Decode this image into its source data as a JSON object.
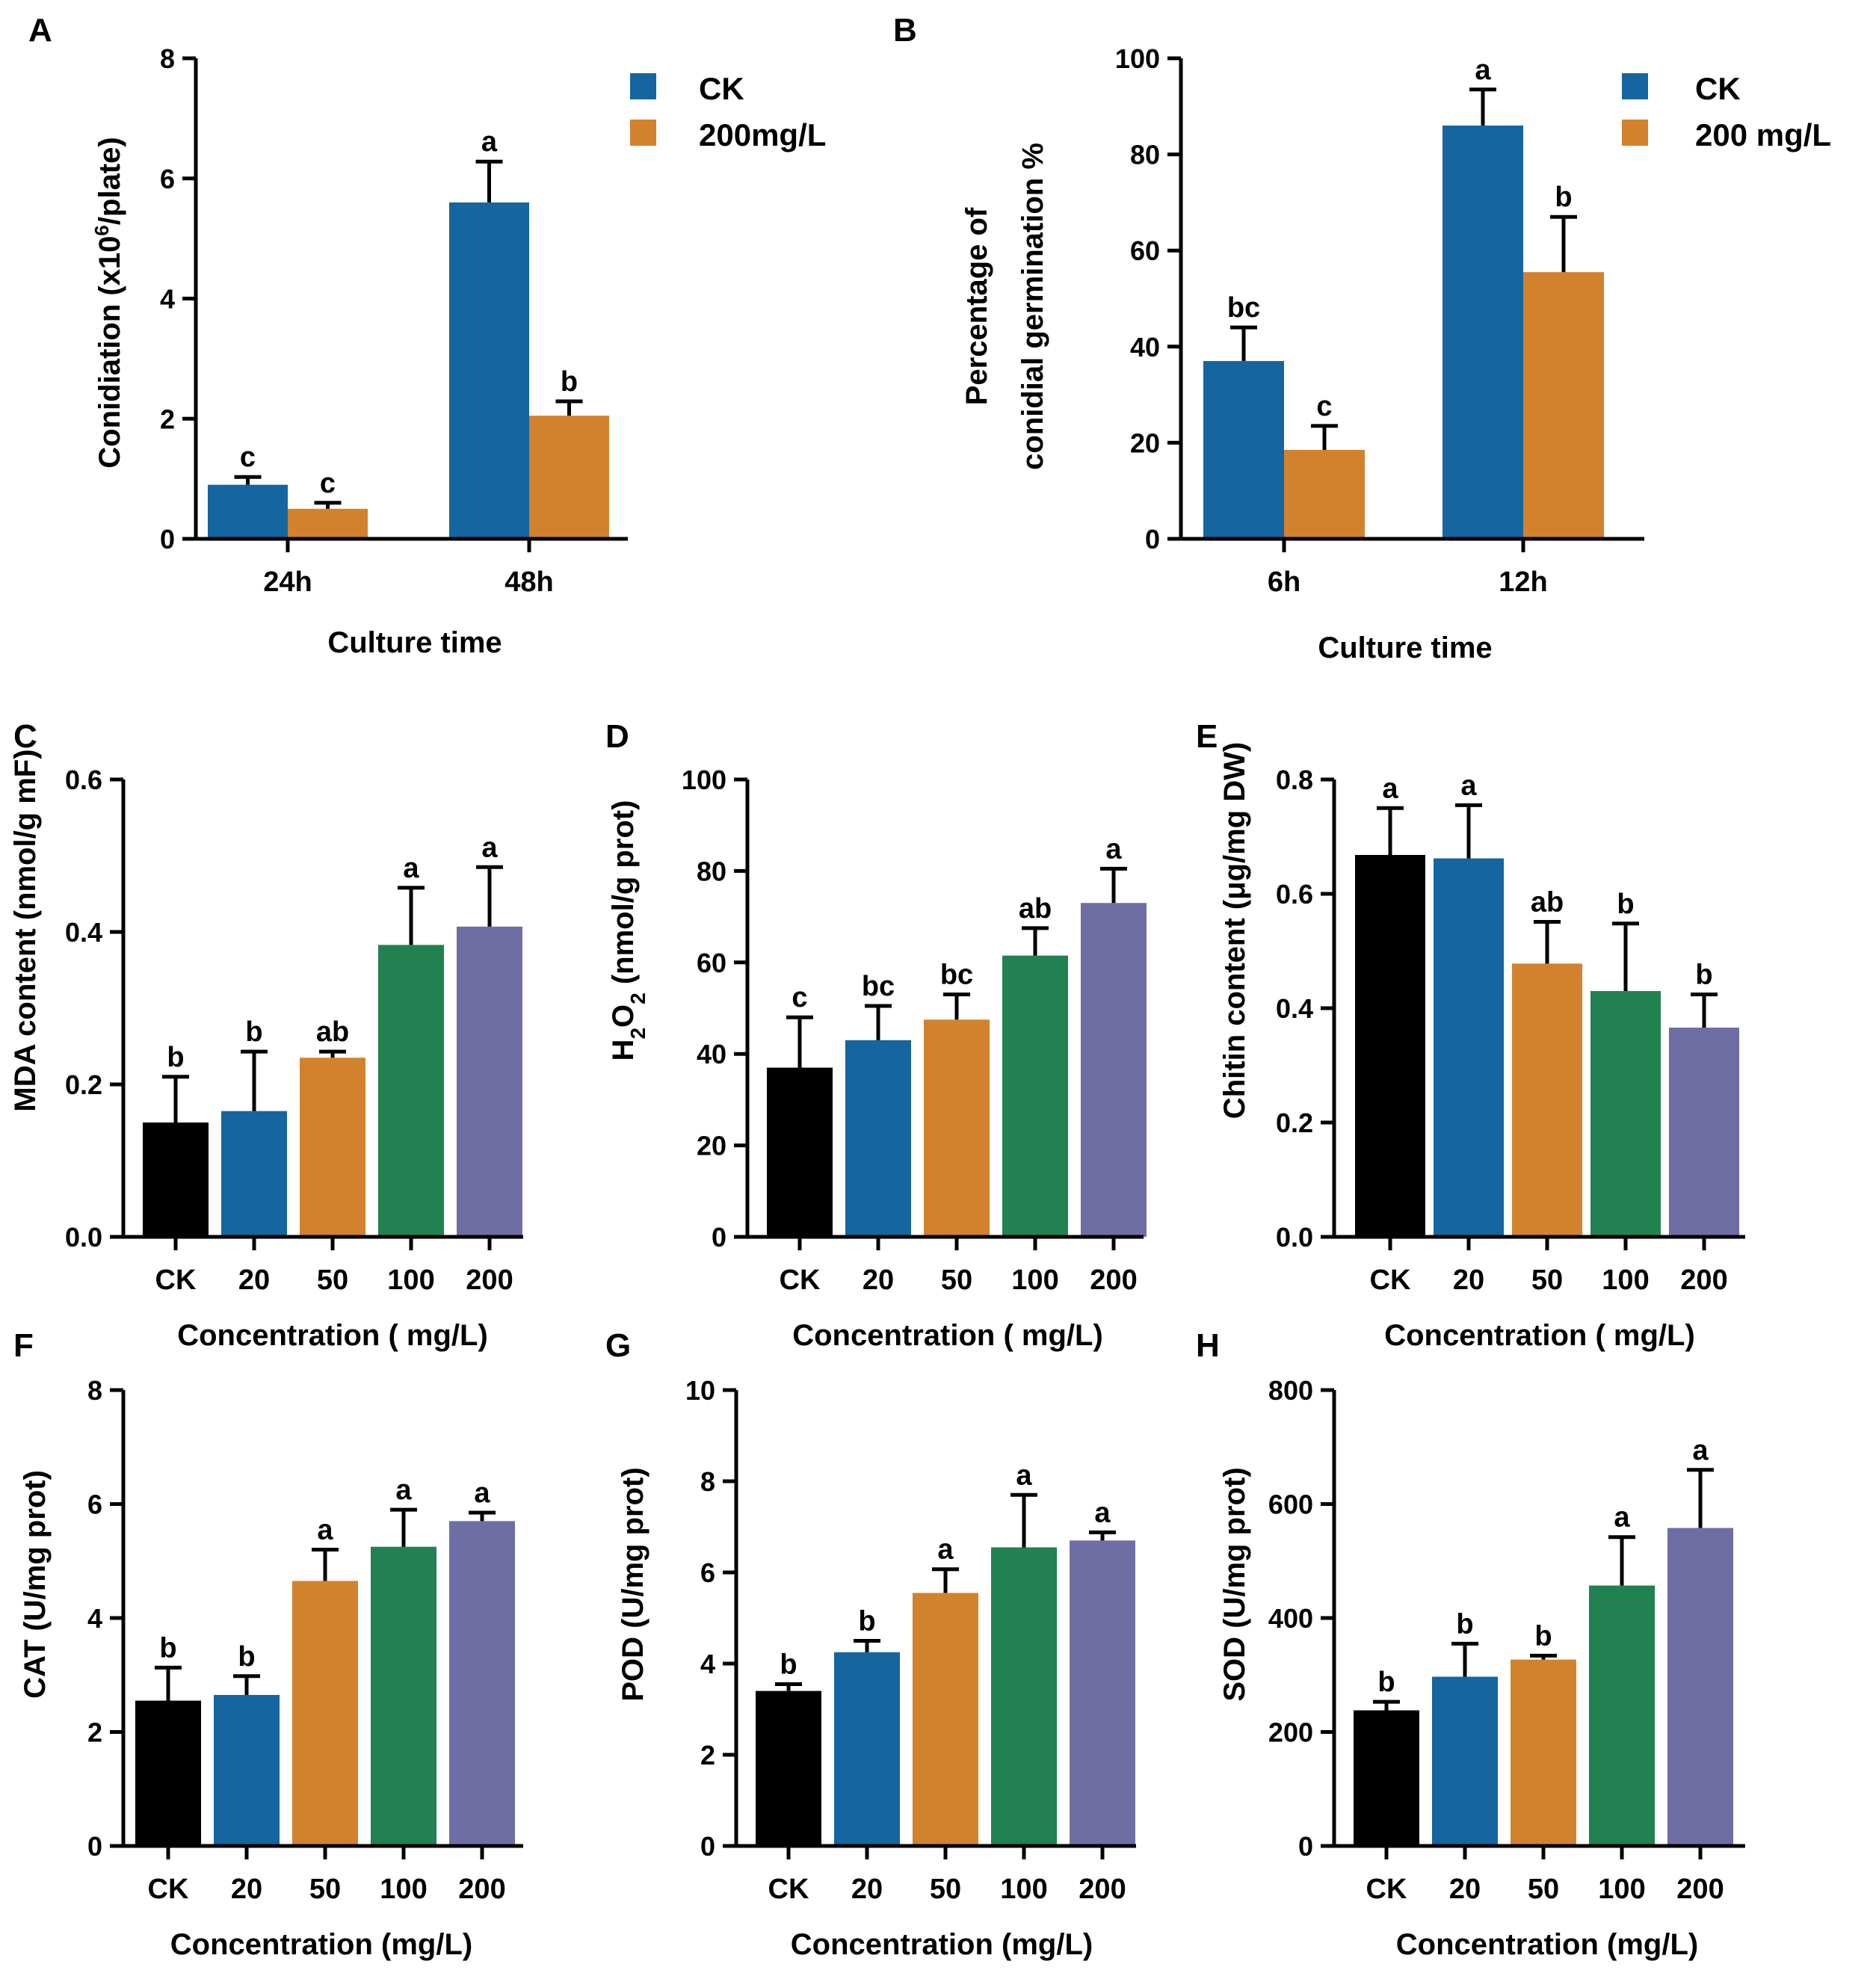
{
  "colors": {
    "black": "#000000",
    "blue": "#1565a0",
    "orange": "#d2822d",
    "green": "#218151",
    "purple": "#6f6ea4"
  },
  "chart_data": [
    {
      "id": "A",
      "type": "bar",
      "panel_label": "A",
      "categories": [
        "24h",
        "48h"
      ],
      "series": [
        {
          "name": "CK",
          "color": "blue",
          "values": [
            0.9,
            5.6
          ],
          "errors": [
            0.13,
            0.68
          ],
          "letters": [
            "c",
            "a"
          ]
        },
        {
          "name": "200mg/L",
          "color": "orange",
          "values": [
            0.5,
            2.05
          ],
          "errors": [
            0.1,
            0.24
          ],
          "letters": [
            "c",
            "b"
          ]
        }
      ],
      "ylabel": "Conidiation (x10^6/plate)",
      "ylabel_main": "Conidiation (x10",
      "ylabel_sup": "6",
      "ylabel_tail": "/plate)",
      "xlabel": "Culture time",
      "ylim": [
        0,
        8
      ],
      "yticks": [
        "0",
        "2",
        "4",
        "6",
        "8"
      ],
      "legend": [
        "CK",
        "200mg/L"
      ]
    },
    {
      "id": "B",
      "type": "bar",
      "panel_label": "B",
      "categories": [
        "6h",
        "12h"
      ],
      "series": [
        {
          "name": "CK",
          "color": "blue",
          "values": [
            37,
            86
          ],
          "errors": [
            7,
            7.5
          ],
          "letters": [
            "bc",
            "a"
          ]
        },
        {
          "name": "200 mg/L",
          "color": "orange",
          "values": [
            18.5,
            55.5
          ],
          "errors": [
            5,
            11.5
          ],
          "letters": [
            "c",
            "b"
          ]
        }
      ],
      "ylabel_lines": [
        "Percentage of",
        "conidial germination %"
      ],
      "xlabel": "Culture time",
      "ylim": [
        0,
        100
      ],
      "yticks": [
        "0",
        "20",
        "40",
        "60",
        "80",
        "100"
      ],
      "legend": [
        "CK",
        "200 mg/L"
      ]
    },
    {
      "id": "C",
      "type": "bar",
      "panel_label": "C",
      "categories": [
        "CK",
        "20",
        "50",
        "100",
        "200"
      ],
      "values": [
        0.15,
        0.165,
        0.235,
        0.383,
        0.407
      ],
      "errors": [
        0.06,
        0.078,
        0.008,
        0.075,
        0.078
      ],
      "letters": [
        "b",
        "b",
        "ab",
        "a",
        "a"
      ],
      "ylabel": "MDA content (nmol/g mF)",
      "xlabel": "Concentration ( mg/L)",
      "ylim": [
        0,
        0.6
      ],
      "yticks": [
        "0.0",
        "0.2",
        "0.4",
        "0.6"
      ]
    },
    {
      "id": "D",
      "type": "bar",
      "panel_label": "D",
      "categories": [
        "CK",
        "20",
        "50",
        "100",
        "200"
      ],
      "values": [
        37,
        43,
        47.5,
        61.5,
        73
      ],
      "errors": [
        11,
        7.5,
        5.5,
        6,
        7.5
      ],
      "letters": [
        "c",
        "bc",
        "bc",
        "ab",
        "a"
      ],
      "ylabel": "H2O2 (nmol/g prot)",
      "ylabel_a": "H",
      "ylabel_sub1": "2",
      "ylabel_b": "O",
      "ylabel_sub2": "2",
      "ylabel_c": " (nmol/g prot)",
      "xlabel": "Concentration ( mg/L)",
      "ylim": [
        0,
        100
      ],
      "yticks": [
        "0",
        "20",
        "40",
        "60",
        "80",
        "100"
      ]
    },
    {
      "id": "E",
      "type": "bar",
      "panel_label": "E",
      "categories": [
        "CK",
        "20",
        "50",
        "100",
        "200"
      ],
      "values": [
        0.668,
        0.662,
        0.478,
        0.43,
        0.366
      ],
      "errors": [
        0.082,
        0.093,
        0.073,
        0.118,
        0.058
      ],
      "letters": [
        "a",
        "a",
        "ab",
        "b",
        "b"
      ],
      "ylabel": "Chitin content (μg/mg DW)",
      "xlabel": "Concentration ( mg/L)",
      "ylim": [
        0,
        0.8
      ],
      "yticks": [
        "0.0",
        "0.2",
        "0.4",
        "0.6",
        "0.8"
      ]
    },
    {
      "id": "F",
      "type": "bar",
      "panel_label": "F",
      "categories": [
        "CK",
        "20",
        "50",
        "100",
        "200"
      ],
      "values": [
        2.55,
        2.65,
        4.65,
        5.25,
        5.7
      ],
      "errors": [
        0.58,
        0.33,
        0.55,
        0.65,
        0.15
      ],
      "letters": [
        "b",
        "b",
        "a",
        "a",
        "a"
      ],
      "ylabel": "CAT (U/mg prot)",
      "xlabel": "Concentration (mg/L)",
      "ylim": [
        0,
        8
      ],
      "yticks": [
        "0",
        "2",
        "4",
        "6",
        "8"
      ]
    },
    {
      "id": "G",
      "type": "bar",
      "panel_label": "G",
      "categories": [
        "CK",
        "20",
        "50",
        "100",
        "200"
      ],
      "values": [
        3.4,
        4.25,
        5.55,
        6.55,
        6.7
      ],
      "errors": [
        0.15,
        0.25,
        0.52,
        1.15,
        0.18
      ],
      "letters": [
        "b",
        "b",
        "a",
        "a",
        "a"
      ],
      "ylabel": "POD (U/mg prot)",
      "xlabel": "Concentration (mg/L)",
      "ylim": [
        0,
        10
      ],
      "yticks": [
        "0",
        "2",
        "4",
        "6",
        "8",
        "10"
      ]
    },
    {
      "id": "H",
      "type": "bar",
      "panel_label": "H",
      "categories": [
        "CK",
        "20",
        "50",
        "100",
        "200"
      ],
      "values": [
        238,
        297,
        327,
        457,
        558
      ],
      "errors": [
        15,
        58,
        7,
        85,
        102
      ],
      "letters": [
        "b",
        "b",
        "b",
        "a",
        "a"
      ],
      "ylabel": "SOD (U/mg prot)",
      "xlabel": "Concentration (mg/L)",
      "ylim": [
        0,
        800
      ],
      "yticks": [
        "0",
        "200",
        "400",
        "600",
        "800"
      ]
    }
  ]
}
